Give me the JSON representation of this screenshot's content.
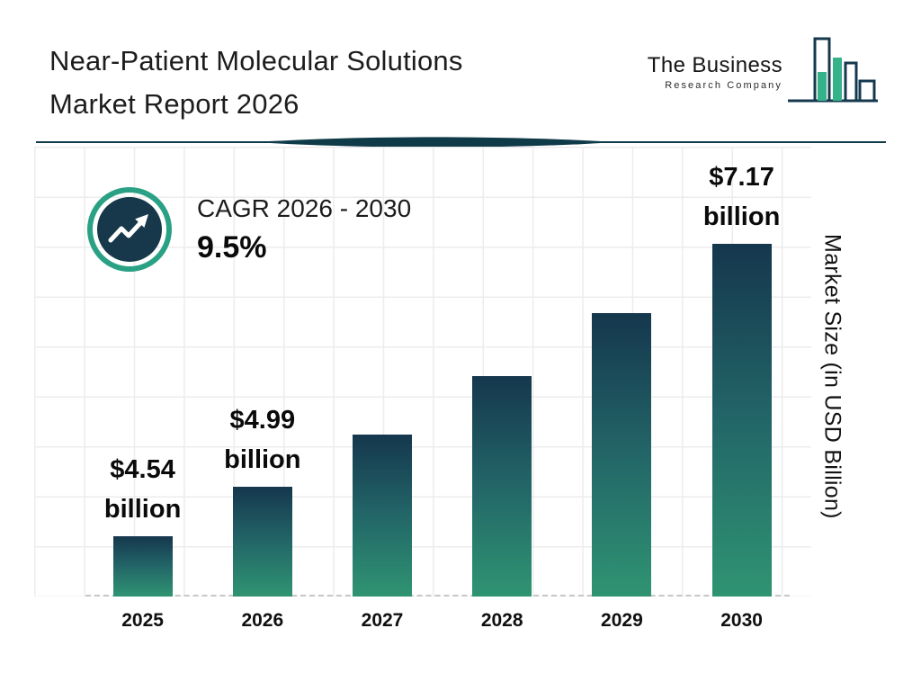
{
  "header": {
    "title_line1": "Near-Patient Molecular Solutions",
    "title_line2": "Market Report 2026",
    "logo": {
      "name_line1": "The Business",
      "name_line2": "Research Company"
    }
  },
  "cagr": {
    "label": "CAGR 2026 - 2030",
    "value": "9.5%"
  },
  "chart_data": {
    "type": "bar",
    "title": "Near-Patient Molecular Solutions Market Report 2026",
    "categories": [
      "2025",
      "2026",
      "2027",
      "2028",
      "2029",
      "2030"
    ],
    "values": [
      4.54,
      4.99,
      5.46,
      5.98,
      6.55,
      7.17
    ],
    "unit": "USD Billion",
    "xlabel": "",
    "ylabel": "Market Size (in USD Billion)",
    "ylim": [
      4.0,
      7.4
    ],
    "grid": true,
    "legend": "none",
    "cagr_label": "CAGR 2026 - 2030",
    "cagr_value": "9.5%",
    "bar_labels": [
      {
        "index": 0,
        "line1": "$4.54",
        "line2": "billion"
      },
      {
        "index": 1,
        "line1": "$4.99",
        "line2": "billion"
      },
      {
        "index": 5,
        "line1": "$7.17",
        "line2": "billion"
      }
    ]
  },
  "colors": {
    "bar_gradient_top": "#15374d",
    "bar_gradient_bottom": "#2f9472",
    "accent_teal": "#2aa184",
    "navy": "#14394e",
    "logo_green": "#35b28a",
    "divider": "#0f3a48",
    "gridline": "#ececec",
    "text": "#1d1d1d"
  }
}
